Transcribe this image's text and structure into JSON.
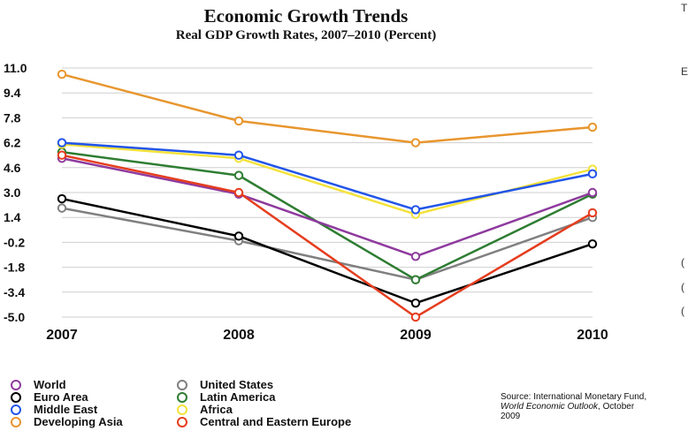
{
  "chart_data": {
    "type": "line",
    "title": "Economic Growth Trends",
    "subtitle": "Real GDP Growth Rates, 2007–2010 (Percent)",
    "xlabel": "",
    "ylabel": "",
    "categories": [
      "2007",
      "2008",
      "2009",
      "2010"
    ],
    "yticks": [
      "11.0",
      "9.4",
      "7.8",
      "6.2",
      "4.6",
      "3.0",
      "1.4",
      "-0.2",
      "-1.8",
      "-3.4",
      "-5.0"
    ],
    "ylim": [
      -5.0,
      11.0
    ],
    "grid": true,
    "legend_position": "bottom-left",
    "series": [
      {
        "name": "Developing Asia",
        "color": "#e8962e",
        "values": [
          10.6,
          7.6,
          6.2,
          7.2
        ]
      },
      {
        "name": "United States",
        "color": "#808080",
        "values": [
          2.0,
          -0.1,
          -2.6,
          1.4
        ]
      },
      {
        "name": "Euro Area",
        "color": "#000000",
        "values": [
          2.6,
          0.2,
          -4.1,
          -0.3
        ]
      },
      {
        "name": "Latin America",
        "color": "#2e7d32",
        "values": [
          5.6,
          4.1,
          -2.6,
          2.9
        ]
      },
      {
        "name": "World",
        "color": "#8e3a9e",
        "values": [
          5.2,
          2.9,
          -1.1,
          3.0
        ]
      },
      {
        "name": "Central and Eastern Europe",
        "color": "#e53d1e",
        "values": [
          5.4,
          3.0,
          -5.0,
          1.7
        ]
      },
      {
        "name": "Africa",
        "color": "#f4e23a",
        "values": [
          6.1,
          5.2,
          1.6,
          4.5
        ]
      },
      {
        "name": "Middle East",
        "color": "#2255e8",
        "values": [
          6.2,
          5.4,
          1.9,
          4.2
        ]
      }
    ]
  },
  "legend": [
    {
      "label": "World",
      "color": "#8e3a9e"
    },
    {
      "label": "Euro Area",
      "color": "#000000"
    },
    {
      "label": "Middle East",
      "color": "#2255e8"
    },
    {
      "label": "Developing Asia",
      "color": "#e8962e"
    },
    {
      "label": "United States",
      "color": "#808080"
    },
    {
      "label": "Latin America",
      "color": "#2e7d32"
    },
    {
      "label": "Africa",
      "color": "#f4e23a"
    },
    {
      "label": "Central and Eastern Europe",
      "color": "#e53d1e"
    }
  ],
  "source": {
    "line1": "Source: International Monetary Fund,",
    "line2_italic": "World Economic Outlook",
    "line2_rest": ", October",
    "line3": "2009"
  },
  "edge_marks": [
    "T",
    "E",
    "(",
    "(",
    "("
  ]
}
